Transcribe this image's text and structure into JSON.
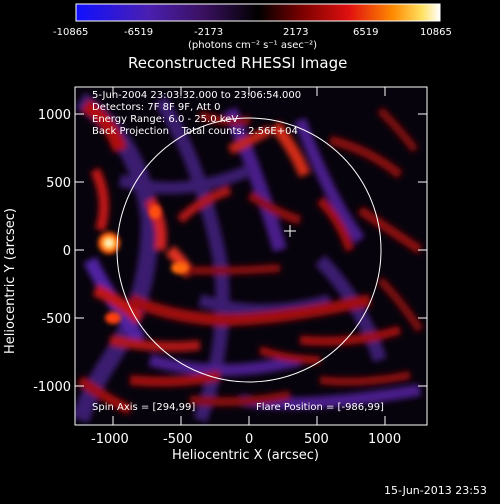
{
  "colorbar": {
    "ticks": [
      "-10865",
      "-6519",
      "-2173",
      "2173",
      "6519",
      "10865"
    ],
    "unit_label": "(photons cm⁻² s⁻¹ asec⁻²)",
    "colors": [
      "#1010ff",
      "#4a1fb0",
      "#3a1060",
      "#000000",
      "#7a0000",
      "#e01010",
      "#ff8a00",
      "#ffe060",
      "#ffffff"
    ]
  },
  "image": {
    "title": "Reconstructed RHESSI Image",
    "info_lines": [
      "5-Jun-2004 23:03:32.000 to 23:06:54.000",
      "Detectors: 7F 8F 9F, Att 0",
      "Energy Range: 6.0 - 25.0 keV",
      "Back Projection    Total counts: 2.56E+04"
    ],
    "spin_axis": "Spin Axis = [294,99]",
    "flare_position": "Flare Position = [-986,99]",
    "xlabel": "Heliocentric X (arcsec)",
    "ylabel": "Heliocentric Y (arcsec)",
    "x_ticks": [
      "-1000",
      "-500",
      "0",
      "500",
      "1000"
    ],
    "y_ticks": [
      "1000",
      "500",
      "0",
      "-500",
      "-1000"
    ],
    "timestamp": "15-Jun-2013 23:53",
    "colors": {
      "axis": "#ffffff",
      "background": "#000000"
    }
  }
}
